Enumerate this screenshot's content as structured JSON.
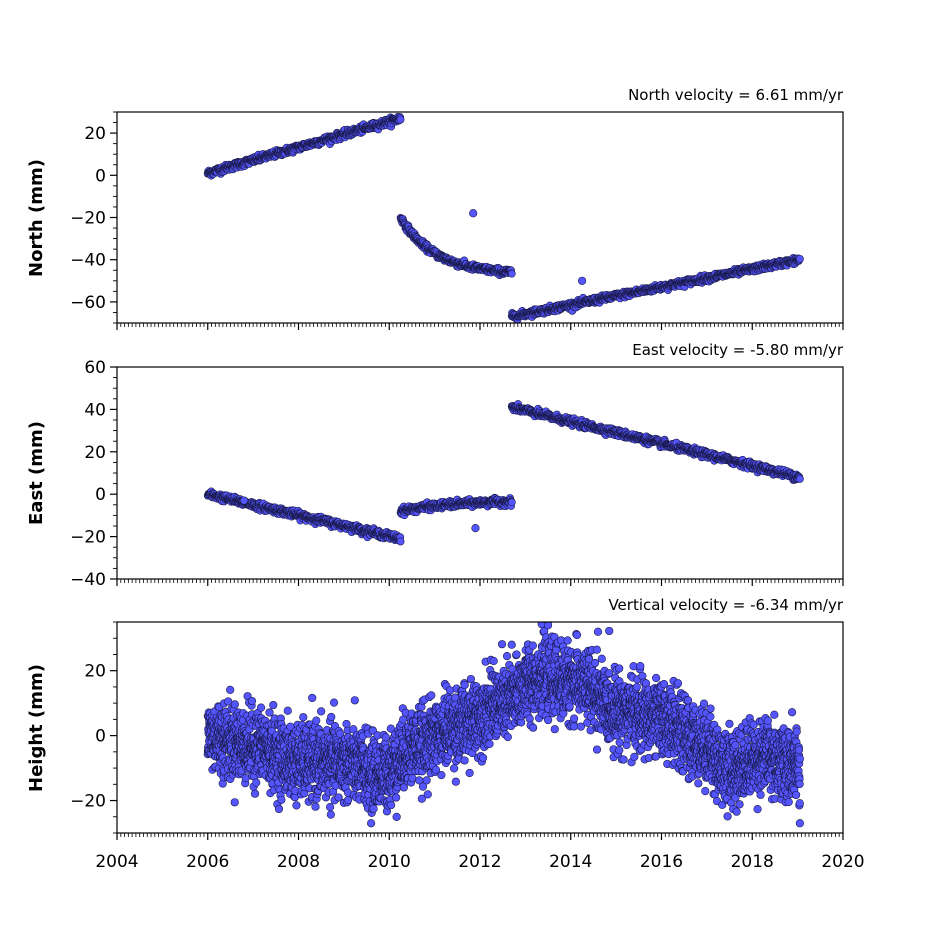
{
  "style": {
    "marker_fill": "#5555ff",
    "marker_edge": "#1a1a4a",
    "axis_color": "#000000",
    "background": "#ffffff"
  },
  "chart_data": [
    {
      "type": "scatter",
      "annotation": "North velocity = 6.61 mm/yr",
      "ylabel": "North (mm)",
      "xlabel": "",
      "xlim": [
        2004,
        2020
      ],
      "ylim": [
        -70,
        30
      ],
      "yticks": [
        20,
        0,
        -20,
        -40,
        -60
      ],
      "ytick_labels": [
        "20",
        "0",
        "−20",
        "−40",
        "−60"
      ],
      "xtick_labels_visible": false,
      "segments": [
        {
          "x0": 2006.0,
          "x1": 2010.25,
          "y0": 1,
          "y1": 27,
          "noise": 1.3
        },
        {
          "x0": 2010.25,
          "x1": 2012.7,
          "y0": -20,
          "y1": -47,
          "shape": "decay",
          "noise": 1.2
        },
        {
          "x0": 2012.7,
          "x1": 2019.05,
          "y0": -67,
          "y1": -40,
          "noise": 1.2
        }
      ],
      "outliers": [
        [
          2011.85,
          -18
        ],
        [
          2014.25,
          -50
        ]
      ]
    },
    {
      "type": "scatter",
      "annotation": "East velocity = -5.80 mm/yr",
      "ylabel": "East (mm)",
      "xlabel": "",
      "xlim": [
        2004,
        2020
      ],
      "ylim": [
        -40,
        60
      ],
      "yticks": [
        60,
        40,
        20,
        0,
        -20,
        -40
      ],
      "ytick_labels": [
        "60",
        "40",
        "20",
        "0",
        "−20",
        "−40"
      ],
      "xtick_labels_visible": false,
      "segments": [
        {
          "x0": 2006.0,
          "x1": 2010.25,
          "y0": 0,
          "y1": -21,
          "noise": 1.3
        },
        {
          "x0": 2010.25,
          "x1": 2012.7,
          "y0": -8,
          "y1": -3,
          "shape": "rise",
          "noise": 1.3
        },
        {
          "x0": 2012.7,
          "x1": 2019.05,
          "y0": 41,
          "y1": 8,
          "noise": 1.3
        }
      ],
      "outliers": [
        [
          2011.9,
          -16
        ],
        [
          2006.8,
          -3
        ]
      ]
    },
    {
      "type": "scatter",
      "annotation": "Vertical velocity = -6.34 mm/yr",
      "ylabel": "Height (mm)",
      "xlabel": "",
      "xlim": [
        2004,
        2020
      ],
      "ylim": [
        -30,
        35
      ],
      "yticks": [
        20,
        0,
        -20
      ],
      "ytick_labels": [
        "20",
        "0",
        "−20"
      ],
      "xtick_labels_visible": true,
      "xticks": [
        2004,
        2006,
        2008,
        2010,
        2012,
        2014,
        2016,
        2018,
        2020
      ],
      "xtick_labels": [
        "2004",
        "2006",
        "2008",
        "2010",
        "2012",
        "2014",
        "2016",
        "2018",
        "2020"
      ],
      "trend_knots": [
        [
          2006.0,
          0
        ],
        [
          2007.0,
          -3
        ],
        [
          2008.0,
          -8
        ],
        [
          2009.0,
          -8
        ],
        [
          2009.8,
          -12
        ],
        [
          2010.6,
          -3
        ],
        [
          2011.5,
          3
        ],
        [
          2012.5,
          10
        ],
        [
          2013.3,
          18
        ],
        [
          2014.2,
          16
        ],
        [
          2015.0,
          8
        ],
        [
          2016.0,
          5
        ],
        [
          2016.8,
          -2
        ],
        [
          2017.5,
          -10
        ],
        [
          2018.3,
          -6
        ],
        [
          2019.05,
          -10
        ]
      ],
      "noise": 5.5,
      "outliers": [
        [
          2013.5,
          34
        ],
        [
          2014.6,
          32
        ],
        [
          2009.6,
          -27
        ],
        [
          2019.05,
          -27
        ],
        [
          2012.7,
          28
        ]
      ]
    }
  ]
}
